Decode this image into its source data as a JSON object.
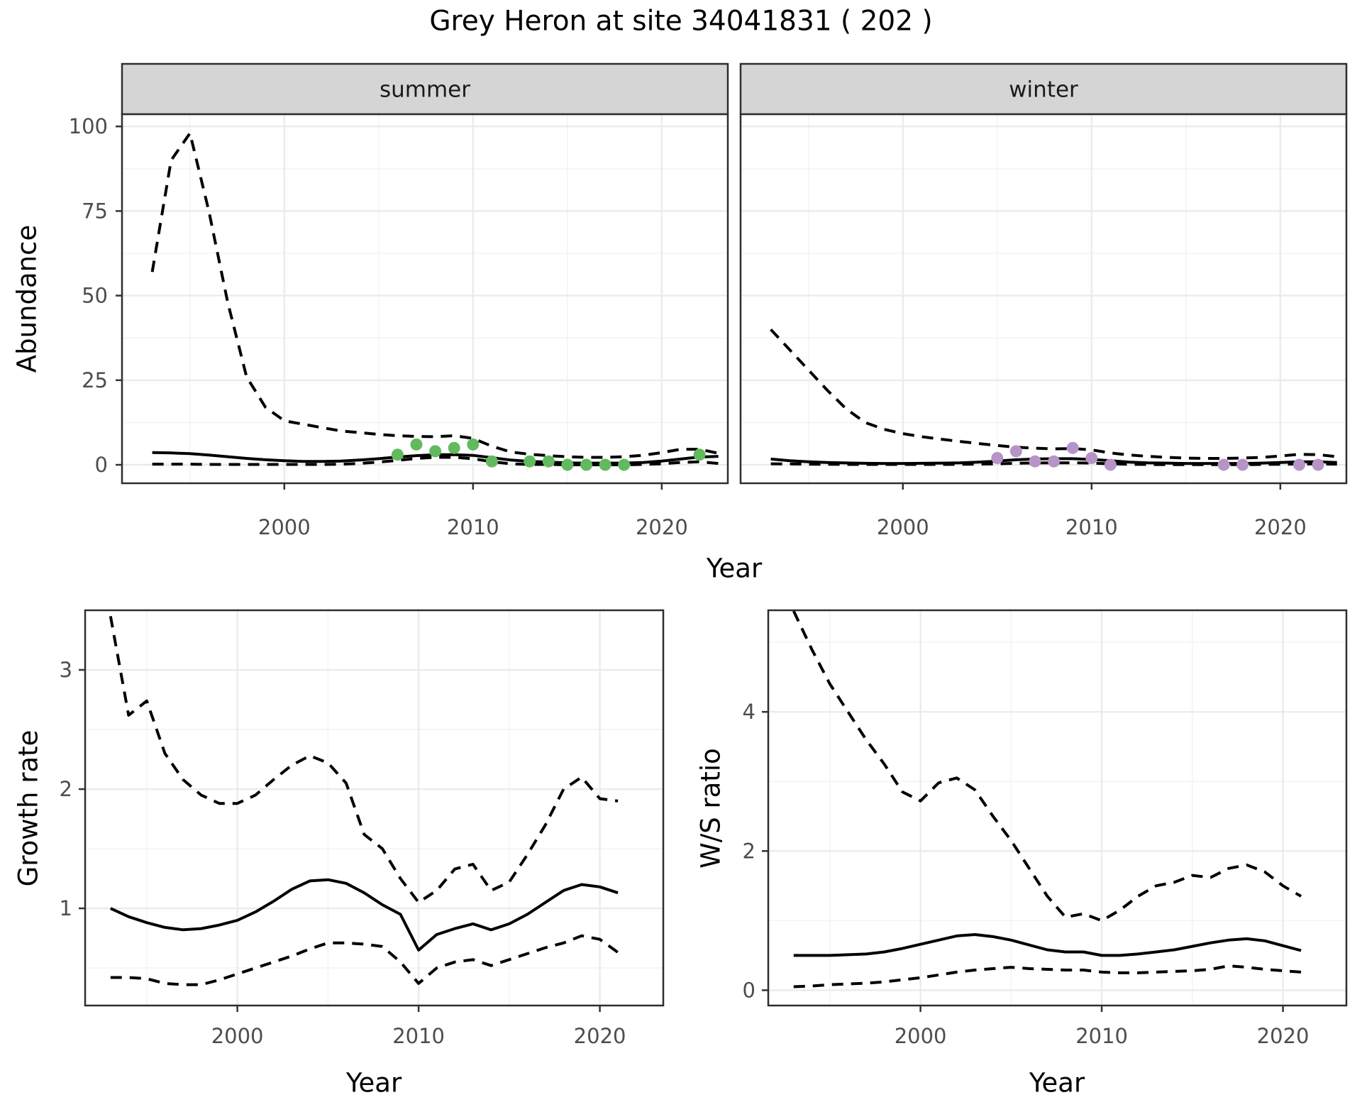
{
  "title": "Grey Heron at site 34041831 ( 202 )",
  "labels": {
    "y_abundance": "Abundance",
    "x_year": "Year",
    "y_growth": "Growth rate",
    "y_ws": "W/S ratio"
  },
  "colors": {
    "summer_point": "#62ba5f",
    "winter_point": "#b694c8",
    "line": "#000000",
    "strip_bg": "#d5d5d5",
    "strip_border": "#2e2e2e",
    "panel_border": "#2e2e2e",
    "grid_major": "#ebebeb",
    "grid_minor": "#f4f4f4",
    "axis_text": "#4d4d4d",
    "tick_mark": "#333333"
  },
  "chart_data": [
    {
      "panel_key": "summer",
      "type": "line",
      "facet_label": "summer",
      "ylabel": "Abundance",
      "xlabel": "Year",
      "show_y_tick_labels": true,
      "x_ticks": [
        2000,
        2010,
        2020
      ],
      "x_minor": [
        1995,
        2005,
        2015
      ],
      "y_ticks": [
        0,
        25,
        50,
        75,
        100
      ],
      "y_minor": [
        12.5,
        37.5,
        62.5,
        87.5
      ],
      "xlim": [
        1991.4,
        2023.5
      ],
      "ylim": [
        -5.45,
        103.6
      ],
      "line_years": [
        1993,
        1994,
        1995,
        1996,
        1997,
        1998,
        1999,
        2000,
        2001,
        2002,
        2003,
        2004,
        2005,
        2006,
        2007,
        2008,
        2009,
        2010,
        2011,
        2012,
        2013,
        2014,
        2015,
        2016,
        2017,
        2018,
        2019,
        2020,
        2021,
        2022,
        2023
      ],
      "series": [
        {
          "name": "upper_95ci",
          "style": "dashed",
          "values": [
            57,
            90,
            98,
            75,
            48,
            26,
            17,
            13,
            12,
            11,
            10,
            9.5,
            9,
            8.6,
            8.4,
            8.3,
            8.6,
            7.8,
            5.5,
            3.8,
            3.1,
            2.7,
            2.4,
            2.2,
            2.2,
            2.4,
            2.8,
            3.6,
            4.6,
            4.6,
            3.4
          ]
        },
        {
          "name": "mean",
          "style": "solid",
          "values": [
            3.6,
            3.5,
            3.3,
            2.9,
            2.4,
            1.9,
            1.5,
            1.2,
            1.0,
            1.0,
            1.1,
            1.4,
            1.8,
            2.3,
            2.7,
            3.0,
            3.0,
            2.8,
            2.1,
            1.4,
            1.0,
            0.8,
            0.6,
            0.5,
            0.5,
            0.5,
            0.7,
            1.1,
            1.7,
            2.3,
            2.5
          ]
        },
        {
          "name": "lower_95ci",
          "style": "dashed",
          "values": [
            0.2,
            0.2,
            0.2,
            0.1,
            0.1,
            0.1,
            0.1,
            0.1,
            0.1,
            0.1,
            0.2,
            0.4,
            0.8,
            1.3,
            1.9,
            2.2,
            2.2,
            1.8,
            0.9,
            0.3,
            0.1,
            0.1,
            0,
            0,
            0,
            0,
            0.1,
            0.3,
            0.7,
            0.9,
            0.4
          ]
        }
      ],
      "points": {
        "name": "summer_observations",
        "color_key": "summer_point",
        "years": [
          2006,
          2007,
          2008,
          2009,
          2010,
          2011,
          2013,
          2014,
          2015,
          2016,
          2017,
          2018,
          2022
        ],
        "values": [
          3,
          6,
          4,
          5,
          6,
          1,
          1,
          1,
          0,
          0,
          0,
          0,
          3
        ]
      }
    },
    {
      "panel_key": "winter",
      "type": "line",
      "facet_label": "winter",
      "ylabel": "Abundance",
      "xlabel": "Year",
      "show_y_tick_labels": false,
      "x_ticks": [
        2000,
        2010,
        2020
      ],
      "x_minor": [
        1995,
        2005,
        2015
      ],
      "y_ticks": [
        0,
        25,
        50,
        75,
        100
      ],
      "y_minor": [
        12.5,
        37.5,
        62.5,
        87.5
      ],
      "xlim": [
        1991.4,
        2023.5
      ],
      "ylim": [
        -5.45,
        103.6
      ],
      "line_years": [
        1993,
        1994,
        1995,
        1996,
        1997,
        1998,
        1999,
        2000,
        2001,
        2002,
        2003,
        2004,
        2005,
        2006,
        2007,
        2008,
        2009,
        2010,
        2011,
        2012,
        2013,
        2014,
        2015,
        2016,
        2017,
        2018,
        2019,
        2020,
        2021,
        2022,
        2023
      ],
      "series": [
        {
          "name": "upper_95ci",
          "style": "dashed",
          "values": [
            40,
            34,
            28,
            22,
            16.5,
            12.5,
            10.5,
            9.2,
            8.3,
            7.6,
            6.9,
            6.3,
            5.7,
            5.2,
            4.9,
            4.7,
            4.8,
            4.4,
            3.5,
            2.9,
            2.5,
            2.2,
            2.0,
            1.9,
            1.9,
            2.0,
            2.2,
            2.6,
            3.1,
            3.0,
            2.4
          ]
        },
        {
          "name": "mean",
          "style": "solid",
          "values": [
            1.7,
            1.2,
            0.9,
            0.7,
            0.55,
            0.45,
            0.4,
            0.4,
            0.45,
            0.5,
            0.6,
            0.8,
            1.1,
            1.5,
            1.7,
            1.8,
            1.8,
            1.6,
            1.2,
            0.8,
            0.6,
            0.5,
            0.4,
            0.4,
            0.4,
            0.4,
            0.5,
            0.7,
            0.9,
            0.9,
            0.7
          ]
        },
        {
          "name": "lower_95ci",
          "style": "dashed",
          "values": [
            0.3,
            0.25,
            0.2,
            0.15,
            0.1,
            0.1,
            0.1,
            0.1,
            0.1,
            0.1,
            0.15,
            0.2,
            0.3,
            0.45,
            0.55,
            0.6,
            0.6,
            0.5,
            0.3,
            0.15,
            0.1,
            0.05,
            0.05,
            0.05,
            0.05,
            0.05,
            0.1,
            0.15,
            0.25,
            0.25,
            0.2
          ]
        }
      ],
      "points": {
        "name": "winter_observations",
        "color_key": "winter_point",
        "years": [
          2005,
          2006,
          2007,
          2008,
          2009,
          2010,
          2011,
          2017,
          2018,
          2021,
          2022
        ],
        "values": [
          2,
          4,
          1,
          1,
          5,
          2,
          0,
          0,
          0,
          0,
          0
        ]
      }
    },
    {
      "panel_key": "growth",
      "type": "line",
      "facet_label": "",
      "ylabel": "Growth rate",
      "xlabel": "Year",
      "show_y_tick_labels": true,
      "x_ticks": [
        2000,
        2010,
        2020
      ],
      "x_minor": [
        1995,
        2005,
        2015
      ],
      "y_ticks": [
        1,
        2,
        3
      ],
      "y_minor": [
        0.5,
        1.5,
        2.5,
        3.5
      ],
      "xlim": [
        1991.6,
        2023.5
      ],
      "ylim": [
        0.185,
        3.5
      ],
      "line_years": [
        1993,
        1994,
        1995,
        1996,
        1997,
        1998,
        1999,
        2000,
        2001,
        2002,
        2003,
        2004,
        2005,
        2006,
        2007,
        2008,
        2009,
        2010,
        2011,
        2012,
        2013,
        2014,
        2015,
        2016,
        2017,
        2018,
        2019,
        2020,
        2021
      ],
      "series": [
        {
          "name": "upper_95ci",
          "style": "dashed",
          "values": [
            3.45,
            2.62,
            2.74,
            2.3,
            2.08,
            1.95,
            1.88,
            1.88,
            1.95,
            2.08,
            2.2,
            2.28,
            2.22,
            2.05,
            1.62,
            1.5,
            1.25,
            1.05,
            1.15,
            1.33,
            1.37,
            1.15,
            1.22,
            1.45,
            1.7,
            2.0,
            2.1,
            1.92,
            1.9
          ]
        },
        {
          "name": "mean",
          "style": "solid",
          "values": [
            1.0,
            0.93,
            0.88,
            0.84,
            0.82,
            0.83,
            0.86,
            0.9,
            0.97,
            1.06,
            1.16,
            1.23,
            1.24,
            1.21,
            1.13,
            1.03,
            0.95,
            0.65,
            0.78,
            0.83,
            0.87,
            0.82,
            0.87,
            0.95,
            1.05,
            1.15,
            1.2,
            1.18,
            1.13
          ]
        },
        {
          "name": "lower_95ci",
          "style": "dashed",
          "values": [
            0.42,
            0.42,
            0.41,
            0.37,
            0.36,
            0.36,
            0.4,
            0.45,
            0.5,
            0.55,
            0.6,
            0.66,
            0.71,
            0.71,
            0.7,
            0.68,
            0.55,
            0.37,
            0.5,
            0.55,
            0.57,
            0.52,
            0.57,
            0.62,
            0.67,
            0.71,
            0.77,
            0.74,
            0.63
          ]
        }
      ],
      "points": null
    },
    {
      "panel_key": "ws",
      "type": "line",
      "facet_label": "",
      "ylabel": "W/S ratio",
      "xlabel": "Year",
      "show_y_tick_labels": true,
      "x_ticks": [
        2000,
        2010,
        2020
      ],
      "x_minor": [
        1995,
        2005,
        2015
      ],
      "y_ticks": [
        0,
        2,
        4
      ],
      "y_minor": [
        1,
        3,
        5
      ],
      "xlim": [
        1991.6,
        2023.5
      ],
      "ylim": [
        -0.22,
        5.46
      ],
      "line_years": [
        1993,
        1994,
        1995,
        1996,
        1997,
        1998,
        1999,
        2000,
        2001,
        2002,
        2003,
        2004,
        2005,
        2006,
        2007,
        2008,
        2009,
        2010,
        2011,
        2012,
        2013,
        2014,
        2015,
        2016,
        2017,
        2018,
        2019,
        2020,
        2021
      ],
      "series": [
        {
          "name": "upper_95ci",
          "style": "dashed",
          "values": [
            5.45,
            4.9,
            4.4,
            4.0,
            3.6,
            3.25,
            2.85,
            2.72,
            2.98,
            3.05,
            2.88,
            2.5,
            2.15,
            1.75,
            1.35,
            1.05,
            1.1,
            1.0,
            1.15,
            1.35,
            1.5,
            1.55,
            1.65,
            1.62,
            1.75,
            1.8,
            1.7,
            1.5,
            1.35
          ]
        },
        {
          "name": "mean",
          "style": "solid",
          "values": [
            0.5,
            0.5,
            0.5,
            0.51,
            0.52,
            0.55,
            0.6,
            0.66,
            0.72,
            0.78,
            0.8,
            0.77,
            0.72,
            0.65,
            0.58,
            0.55,
            0.55,
            0.5,
            0.5,
            0.52,
            0.55,
            0.58,
            0.63,
            0.68,
            0.72,
            0.74,
            0.71,
            0.64,
            0.57
          ]
        },
        {
          "name": "lower_95ci",
          "style": "dashed",
          "values": [
            0.05,
            0.06,
            0.08,
            0.09,
            0.1,
            0.12,
            0.15,
            0.18,
            0.22,
            0.26,
            0.29,
            0.31,
            0.33,
            0.31,
            0.3,
            0.29,
            0.29,
            0.26,
            0.25,
            0.25,
            0.26,
            0.27,
            0.28,
            0.3,
            0.35,
            0.33,
            0.3,
            0.28,
            0.26
          ]
        }
      ],
      "points": null
    }
  ]
}
